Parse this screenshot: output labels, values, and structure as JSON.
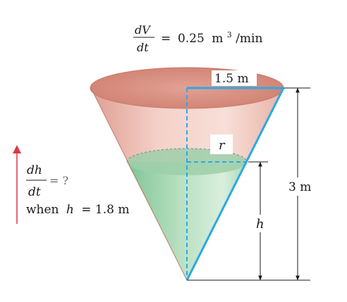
{
  "rate_given": {
    "numerator": "dV",
    "denominator": "dt",
    "equals": "=",
    "value": "0.25",
    "unit_m": "m",
    "unit_exp": "3",
    "unit_rest": "/min"
  },
  "rate_unknown": {
    "numerator": "dh",
    "denominator": "dt",
    "equals": "= ?",
    "when_word": "when",
    "h_var": "h",
    "h_value": "= 1.8 m"
  },
  "labels": {
    "top_radius": "1.5 m",
    "water_radius": "r",
    "water_height": "h",
    "total_height": "3 m"
  },
  "colors": {
    "cone_top_fill": "#e6b1a6",
    "cone_rim_fill": "#d99182",
    "water_fill": "#9fd3ad",
    "water_surface": "#8fc89d",
    "blue_line": "#2aa9e6",
    "arrow_red": "#e0364a",
    "black": "#1a1a1a"
  }
}
